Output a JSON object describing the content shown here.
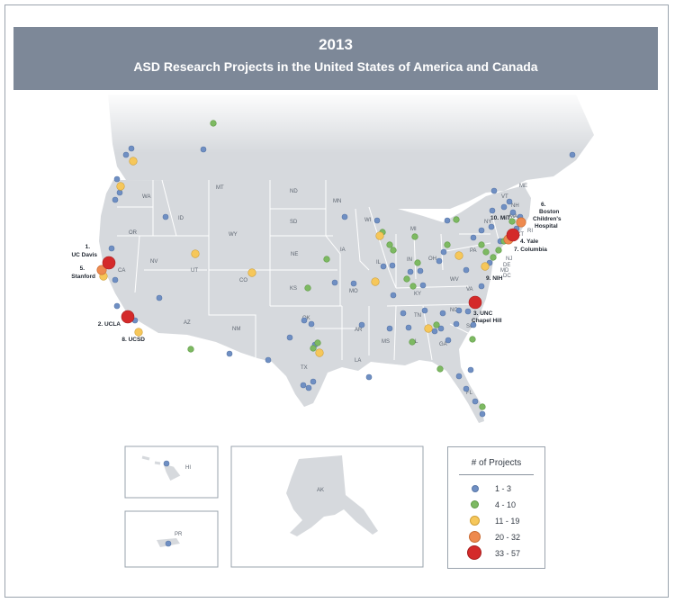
{
  "header": {
    "year": "2013",
    "subtitle": "ASD Research Projects in the United States of America and Canada"
  },
  "colors": {
    "land": "#d6d9dd",
    "land_shade": "#cfd3d8",
    "border": "#ffffff",
    "header_bg": "#7d8898",
    "range_1_3": "#6f8fc3",
    "range_4_10": "#7db962",
    "range_11_19": "#f6c75a",
    "range_20_32": "#ee8a4f",
    "range_33_57": "#d42a2a"
  },
  "legend": {
    "title": "# of Projects",
    "items": [
      {
        "label": "1 - 3",
        "color_key": "range_1_3"
      },
      {
        "label": "4 - 10",
        "color_key": "range_4_10"
      },
      {
        "label": "11 - 19",
        "color_key": "range_11_19"
      },
      {
        "label": "20 - 32",
        "color_key": "range_20_32"
      },
      {
        "label": "33 - 57",
        "color_key": "range_33_57"
      }
    ]
  },
  "state_labels": [
    "WA",
    "OR",
    "ID",
    "MT",
    "WY",
    "ND",
    "SD",
    "NE",
    "MN",
    "WI",
    "IA",
    "NV",
    "UT",
    "CO",
    "KS",
    "MO",
    "IL",
    "IN",
    "OH",
    "MI",
    "PA",
    "NY",
    "VT",
    "NH",
    "ME",
    "MA",
    "RI",
    "CT",
    "NJ",
    "DE",
    "MD",
    "DC",
    "WV",
    "VA",
    "KY",
    "TN",
    "NC",
    "SC",
    "GA",
    "AL",
    "MS",
    "AR",
    "LA",
    "OK",
    "TX",
    "NM",
    "AZ",
    "CA",
    "FL",
    "HI",
    "AK",
    "PR"
  ],
  "city_labels": [
    {
      "text": "1.",
      "note": "rank"
    },
    {
      "text": "UC Davis"
    },
    {
      "text": "5."
    },
    {
      "text": "Stanford"
    },
    {
      "text": "2. UCLA"
    },
    {
      "text": "8. UCSD"
    },
    {
      "text": "6."
    },
    {
      "text": "Boston"
    },
    {
      "text": "Children's"
    },
    {
      "text": "Hospital"
    },
    {
      "text": "10. MIT"
    },
    {
      "text": "4. Yale"
    },
    {
      "text": "7. Columbia"
    },
    {
      "text": "9. NIH"
    },
    {
      "text": "3. UNC"
    },
    {
      "text": "Chapel Hill"
    }
  ]
}
